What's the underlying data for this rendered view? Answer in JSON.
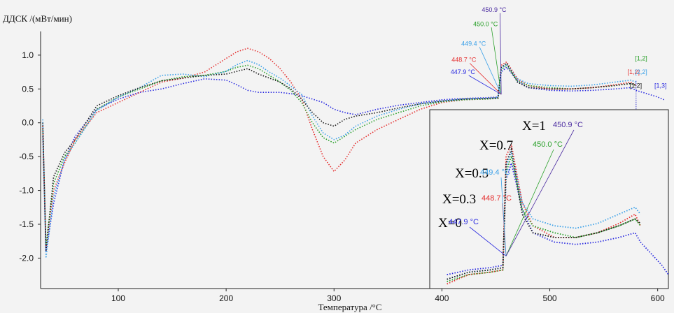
{
  "chart_data": {
    "type": "line",
    "title": "",
    "ylabel": "ДДСК /(мВт/мин)",
    "xlabel": "Температура /°C",
    "xlim": [
      28,
      608
    ],
    "ylim": [
      -2.45,
      1.35
    ],
    "xticks": [
      100,
      200,
      300,
      400,
      500,
      600
    ],
    "yticks": [
      1.0,
      0.5,
      0.0,
      -0.5,
      -1.0,
      -1.5,
      -2.0
    ],
    "ytick_labels": [
      "1.0",
      "0.5",
      "0.0",
      "-0.5",
      "-1.0",
      "-1.5",
      "-2.0"
    ],
    "grid": false,
    "series": [
      {
        "x": [
          30,
          33,
          40,
          50,
          60,
          80,
          100,
          120,
          140,
          160,
          180,
          200,
          210,
          220,
          230,
          240,
          250,
          260,
          270,
          280,
          290,
          300,
          310,
          320,
          340,
          360,
          380,
          400,
          420,
          440,
          452,
          455,
          460,
          470,
          480,
          500,
          520,
          540,
          560,
          575,
          580,
          590,
          600,
          606
        ],
        "values": [
          -0.2,
          -1.9,
          -1.2,
          -0.55,
          -0.2,
          0.2,
          0.35,
          0.45,
          0.5,
          0.58,
          0.65,
          0.63,
          0.56,
          0.48,
          0.45,
          0.45,
          0.45,
          0.43,
          0.4,
          0.35,
          0.3,
          0.2,
          0.15,
          0.12,
          0.2,
          0.26,
          0.3,
          0.34,
          0.36,
          0.37,
          0.38,
          0.75,
          0.82,
          0.62,
          0.52,
          0.48,
          0.47,
          0.48,
          0.5,
          0.52,
          0.48,
          0.43,
          0.38,
          0.34
        ],
        "color": "#2a2ae0",
        "ann_label": "447.9 °C",
        "end_label": "[1,3]"
      },
      {
        "x": [
          30,
          33,
          40,
          50,
          60,
          80,
          100,
          120,
          140,
          160,
          180,
          200,
          210,
          220,
          230,
          240,
          250,
          260,
          270,
          280,
          290,
          300,
          310,
          320,
          340,
          360,
          380,
          400,
          420,
          440,
          452,
          455,
          460,
          470,
          480,
          500,
          520,
          540,
          560,
          575,
          580
        ],
        "values": [
          -0.05,
          -1.85,
          -1.0,
          -0.6,
          -0.25,
          0.15,
          0.3,
          0.45,
          0.6,
          0.66,
          0.75,
          0.95,
          1.05,
          1.1,
          1.05,
          0.95,
          0.8,
          0.6,
          0.35,
          -0.1,
          -0.5,
          -0.72,
          -0.55,
          -0.3,
          -0.1,
          0.05,
          0.2,
          0.3,
          0.34,
          0.35,
          0.36,
          0.85,
          0.9,
          0.65,
          0.55,
          0.5,
          0.5,
          0.52,
          0.56,
          0.6,
          0.55
        ],
        "color": "#e53030",
        "ann_label": "448.7 °C",
        "end_label": "[1,2]"
      },
      {
        "x": [
          30,
          33,
          40,
          50,
          60,
          80,
          100,
          120,
          140,
          160,
          180,
          200,
          210,
          220,
          230,
          240,
          250,
          260,
          270,
          280,
          290,
          300,
          310,
          320,
          340,
          360,
          380,
          400,
          420,
          440,
          452,
          455,
          460,
          470,
          480,
          500,
          520,
          540,
          560,
          575,
          580
        ],
        "values": [
          -0.1,
          -1.8,
          -0.9,
          -0.5,
          -0.3,
          0.2,
          0.38,
          0.5,
          0.62,
          0.68,
          0.7,
          0.76,
          0.82,
          0.85,
          0.8,
          0.7,
          0.6,
          0.48,
          0.3,
          0.0,
          -0.22,
          -0.3,
          -0.2,
          -0.1,
          0.05,
          0.15,
          0.25,
          0.31,
          0.34,
          0.35,
          0.36,
          0.78,
          0.85,
          0.62,
          0.55,
          0.52,
          0.5,
          0.52,
          0.55,
          0.58,
          0.55
        ],
        "color": "#2aa02a",
        "ann_label": "450.0 °C",
        "end_label": "[1,2]"
      },
      {
        "x": [
          30,
          33,
          40,
          50,
          60,
          80,
          100,
          120,
          140,
          160,
          180,
          200,
          210,
          220,
          230,
          240,
          250,
          260,
          270,
          280,
          290,
          300,
          310,
          320,
          340,
          360,
          380,
          400,
          420,
          440,
          452,
          455,
          460,
          470,
          480,
          500,
          520,
          540,
          560,
          575,
          580
        ],
        "values": [
          0.05,
          -2.0,
          -1.1,
          -0.55,
          -0.3,
          0.18,
          0.38,
          0.52,
          0.7,
          0.72,
          0.68,
          0.76,
          0.86,
          0.92,
          0.86,
          0.75,
          0.66,
          0.54,
          0.42,
          0.1,
          -0.15,
          -0.25,
          -0.18,
          -0.05,
          0.1,
          0.2,
          0.28,
          0.32,
          0.35,
          0.36,
          0.37,
          0.8,
          0.87,
          0.65,
          0.58,
          0.55,
          0.54,
          0.56,
          0.6,
          0.63,
          0.6
        ],
        "color": "#3aa0e8",
        "ann_label": "449.4 °C",
        "end_label": "[2,2]"
      },
      {
        "x": [
          30,
          33,
          40,
          50,
          60,
          80,
          100,
          120,
          140,
          160,
          180,
          200,
          210,
          220,
          230,
          240,
          250,
          260,
          270,
          280,
          290,
          300,
          310,
          320,
          340,
          360,
          380,
          400,
          420,
          440,
          452,
          455,
          460,
          470,
          480,
          500,
          520,
          540,
          560,
          575,
          580
        ],
        "values": [
          0.0,
          -1.9,
          -0.8,
          -0.45,
          -0.25,
          0.25,
          0.4,
          0.52,
          0.62,
          0.66,
          0.7,
          0.72,
          0.76,
          0.8,
          0.72,
          0.66,
          0.6,
          0.5,
          0.35,
          0.15,
          0.0,
          -0.05,
          0.05,
          0.1,
          0.15,
          0.22,
          0.28,
          0.32,
          0.35,
          0.36,
          0.37,
          0.82,
          0.88,
          0.6,
          0.52,
          0.5,
          0.5,
          0.52,
          0.55,
          0.58,
          0.56
        ],
        "color": "#1a1a1a",
        "ann_label": "450.9 °C",
        "end_label": "[1,2]"
      }
    ],
    "annotation_colors": [
      "#2a2ae0",
      "#e53030",
      "#3aa0e8",
      "#2aa02a",
      "#4a2aa0"
    ],
    "inset": {
      "labels": [
        "X=0",
        "X=0.3",
        "X=0.5",
        "X=0.7",
        "X=1"
      ],
      "temps": [
        "447.9 °C",
        "448.7 °C",
        "449.4 °C",
        "450.0 °C",
        "450.9 °C"
      ]
    }
  }
}
